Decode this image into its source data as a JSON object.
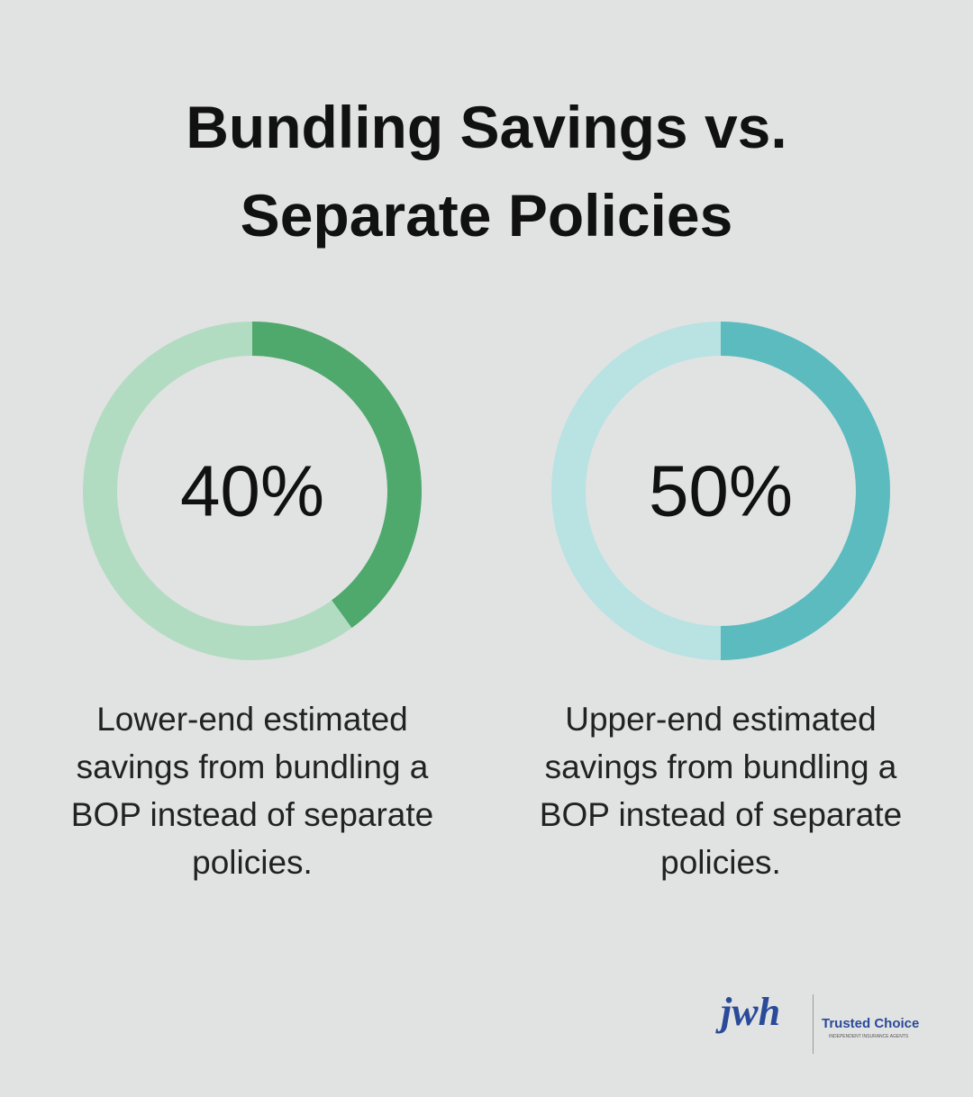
{
  "title": "Bundling Savings vs. Separate Policies",
  "chart_data": [
    {
      "type": "donut",
      "values": [
        40
      ],
      "value_labels": [
        "40%"
      ],
      "total": 100,
      "color": "#4fa86c",
      "track_color": "#b2dcc2",
      "description": "Lower-end estimated savings from bundling a BOP instead of separate policies."
    },
    {
      "type": "donut",
      "values": [
        50
      ],
      "value_labels": [
        "50%"
      ],
      "total": 100,
      "color": "#5bbbbf",
      "track_color": "#b9e2e3",
      "description": "Upper-end estimated savings from bundling a BOP instead of separate policies."
    }
  ],
  "logo": {
    "agency": "jwh",
    "partner": "Trusted Choice",
    "partner_tagline": "INDEPENDENT INSURANCE AGENTS"
  }
}
